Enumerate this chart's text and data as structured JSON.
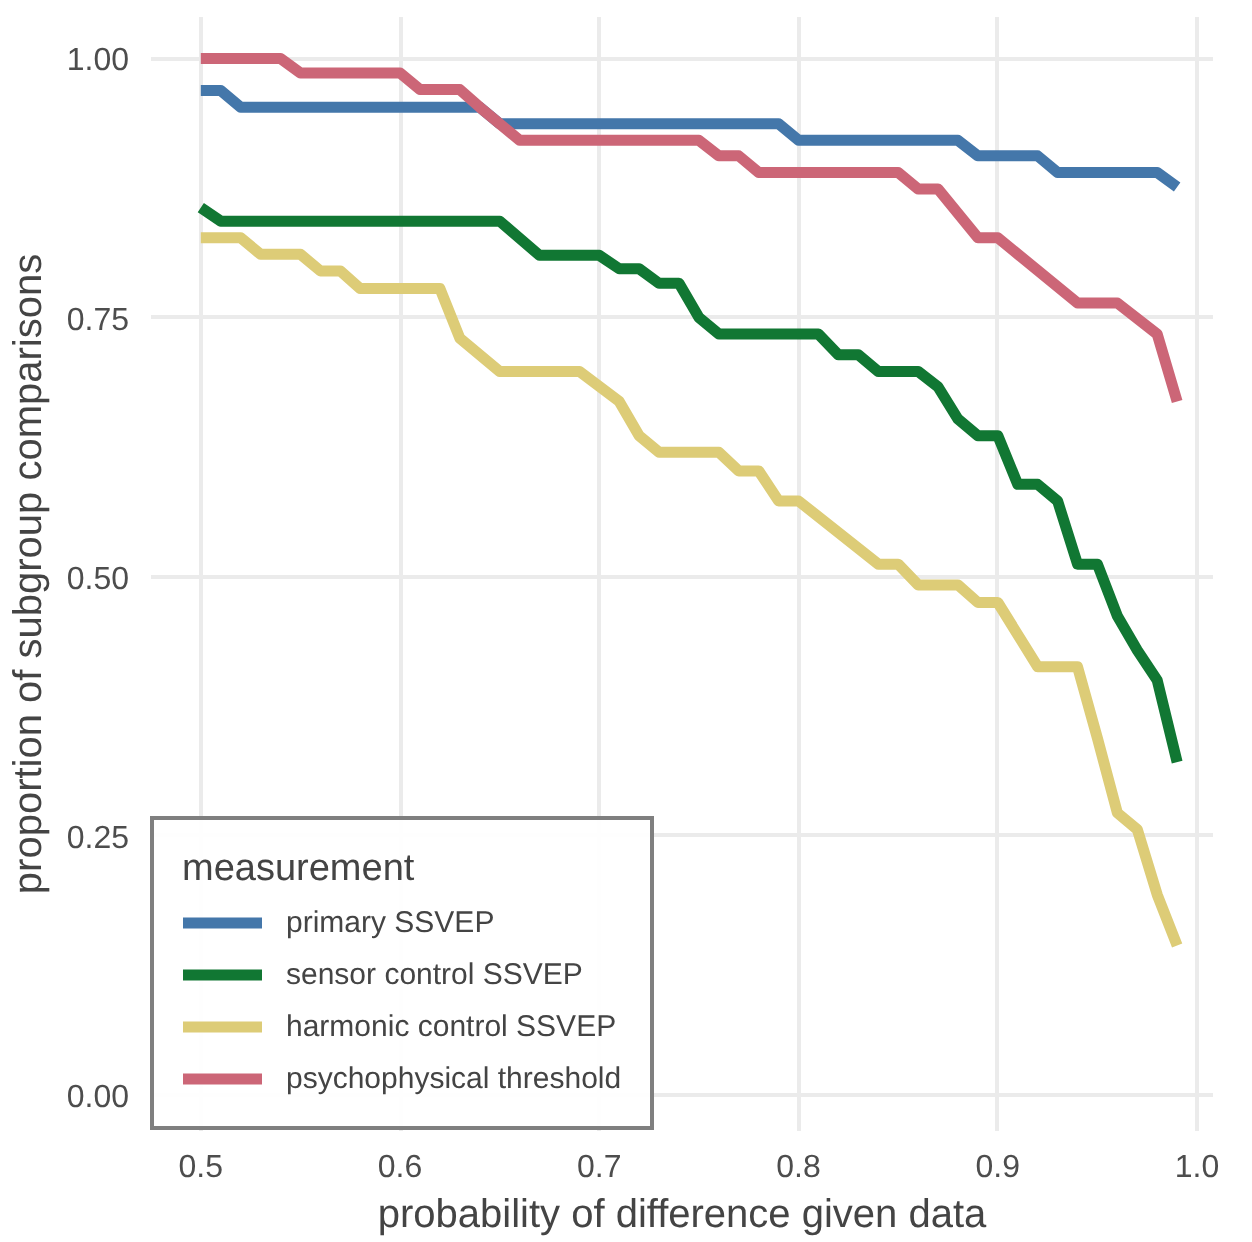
{
  "chart_data": {
    "type": "line",
    "xlabel": "probability of difference given data",
    "ylabel": "proportion of subgroup comparisons",
    "legend_title": "measurement",
    "xlim": [
      0.475,
      1.008
    ],
    "ylim": [
      -0.035,
      1.04
    ],
    "xticks": [
      0.5,
      0.6,
      0.7,
      0.8,
      0.9,
      {
        "value": 1.0,
        "label": "1.0"
      }
    ],
    "yticks": [
      {
        "value": 0,
        "label": "0.00"
      },
      {
        "value": 0.25,
        "label": "0.25"
      },
      {
        "value": 0.5,
        "label": "0.50"
      },
      {
        "value": 0.75,
        "label": "0.75"
      },
      {
        "value": 1.0,
        "label": "1.00"
      }
    ],
    "grid": true,
    "legend": "bottom left",
    "line_style": "solid",
    "series": [
      {
        "name": "primary SSVEP",
        "color": "#4477aa",
        "x": [
          0.5,
          0.51,
          0.52,
          0.64,
          0.65,
          0.79,
          0.8,
          0.88,
          0.89,
          0.92,
          0.93,
          0.98,
          0.99
        ],
        "values": [
          0.969,
          0.969,
          0.953,
          0.953,
          0.937,
          0.937,
          0.921,
          0.921,
          0.906,
          0.906,
          0.89,
          0.89,
          0.876
        ]
      },
      {
        "name": "sensor control SSVEP",
        "color": "#117733",
        "x": [
          0.5,
          0.51,
          0.65,
          0.67,
          0.7,
          0.71,
          0.72,
          0.73,
          0.74,
          0.75,
          0.76,
          0.81,
          0.82,
          0.83,
          0.84,
          0.86,
          0.87,
          0.88,
          0.89,
          0.9,
          0.91,
          0.92,
          0.93,
          0.94,
          0.95,
          0.96,
          0.97,
          0.98,
          0.99
        ],
        "values": [
          0.856,
          0.843,
          0.843,
          0.81,
          0.81,
          0.797,
          0.797,
          0.783,
          0.783,
          0.75,
          0.734,
          0.734,
          0.714,
          0.714,
          0.698,
          0.698,
          0.683,
          0.652,
          0.636,
          0.636,
          0.589,
          0.589,
          0.573,
          0.512,
          0.512,
          0.462,
          0.429,
          0.4,
          0.321
        ]
      },
      {
        "name": "harmonic control SSVEP",
        "color": "#ddcc77",
        "x": [
          0.5,
          0.52,
          0.53,
          0.55,
          0.56,
          0.57,
          0.58,
          0.62,
          0.63,
          0.65,
          0.69,
          0.71,
          0.72,
          0.73,
          0.76,
          0.77,
          0.78,
          0.79,
          0.8,
          0.84,
          0.85,
          0.86,
          0.88,
          0.89,
          0.9,
          0.92,
          0.94,
          0.95,
          0.96,
          0.97,
          0.98,
          0.99
        ],
        "values": [
          0.827,
          0.827,
          0.811,
          0.811,
          0.795,
          0.795,
          0.778,
          0.778,
          0.73,
          0.698,
          0.698,
          0.669,
          0.636,
          0.62,
          0.62,
          0.602,
          0.602,
          0.573,
          0.573,
          0.512,
          0.512,
          0.492,
          0.492,
          0.475,
          0.475,
          0.413,
          0.413,
          0.344,
          0.272,
          0.256,
          0.193,
          0.144
        ]
      },
      {
        "name": "psychophysical threshold",
        "color": "#cc6677",
        "x": [
          0.5,
          0.54,
          0.55,
          0.6,
          0.61,
          0.63,
          0.64,
          0.66,
          0.75,
          0.76,
          0.77,
          0.78,
          0.85,
          0.86,
          0.87,
          0.89,
          0.9,
          0.94,
          0.96,
          0.98,
          0.99
        ],
        "values": [
          1.0,
          1.0,
          0.986,
          0.986,
          0.97,
          0.97,
          0.953,
          0.921,
          0.921,
          0.906,
          0.906,
          0.89,
          0.89,
          0.874,
          0.874,
          0.827,
          0.827,
          0.764,
          0.764,
          0.734,
          0.669
        ]
      }
    ]
  }
}
